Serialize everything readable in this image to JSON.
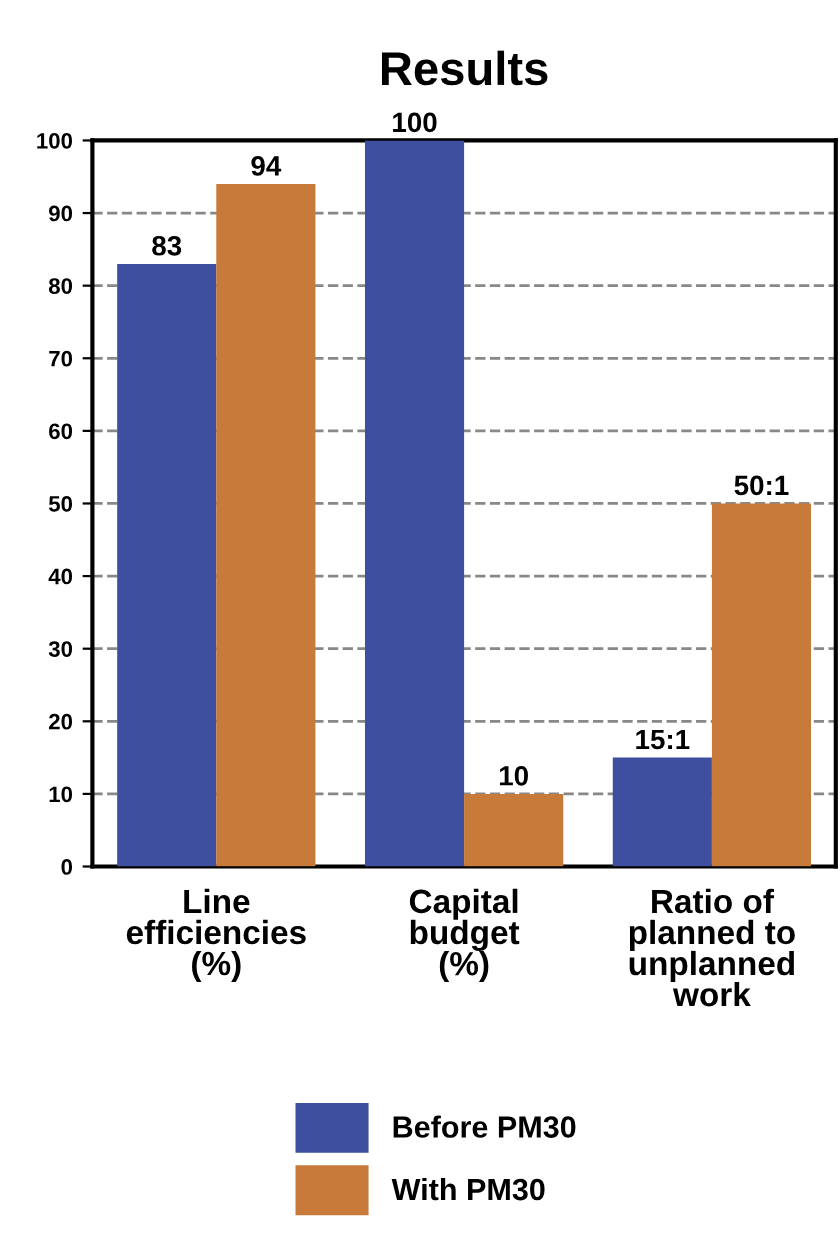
{
  "chart_data": {
    "type": "bar",
    "title": "Results",
    "categories": [
      "Line\nefficiencies\n(%)",
      "Capital\nbudget\n(%)",
      "Ratio of\nplanned to\nunplanned\nwork"
    ],
    "series": [
      {
        "name": "Before PM30",
        "color": "#3d4f9e",
        "values": [
          83,
          100,
          15
        ],
        "value_labels": [
          "83",
          "100",
          "15:1"
        ]
      },
      {
        "name": "With PM30",
        "color": "#c87a3a",
        "values": [
          94,
          10,
          50
        ],
        "value_labels": [
          "94",
          "10",
          "50:1"
        ]
      }
    ],
    "ylim": [
      0,
      100
    ],
    "yticks": [
      0,
      10,
      20,
      30,
      40,
      50,
      60,
      70,
      80,
      90,
      100
    ],
    "grid": "y",
    "legend": "bottom"
  }
}
